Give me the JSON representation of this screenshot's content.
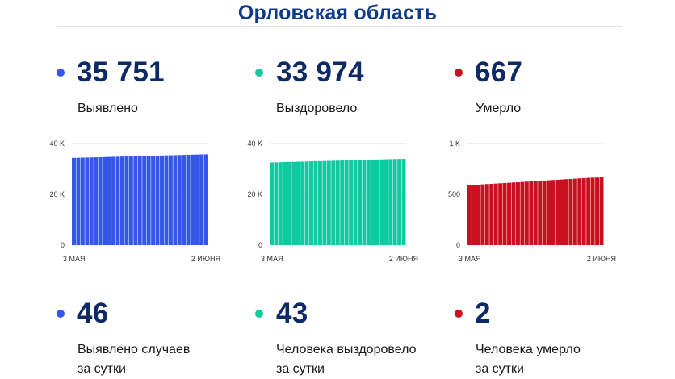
{
  "title": "Орловская область",
  "colors": {
    "blue": "#3557e8",
    "teal": "#0fc9a0",
    "red": "#c8101e",
    "title": "#0d3a8a"
  },
  "totals": [
    {
      "value": "35 751",
      "label": "Выявлено",
      "color": "#3557e8"
    },
    {
      "value": "33 974",
      "label": "Выздоровело",
      "color": "#0fc9a0"
    },
    {
      "value": "667",
      "label": "Умерло",
      "color": "#c8101e"
    }
  ],
  "daily": [
    {
      "value": "46",
      "label_line1": "Выявлено случаев",
      "label_line2": "за сутки",
      "color": "#3557e8"
    },
    {
      "value": "43",
      "label_line1": "Человека выздоровело",
      "label_line2": "за сутки",
      "color": "#0fc9a0"
    },
    {
      "value": "2",
      "label_line1": "Человека умерло",
      "label_line2": "за сутки",
      "color": "#c8101e"
    }
  ],
  "chart_data": [
    {
      "type": "bar",
      "x_start_label": "3 МАЯ",
      "x_end_label": "2 ИЮНЯ",
      "y_tick_labels": [
        "0",
        "20 K",
        "40 K"
      ],
      "y_ticks": [
        0,
        20000,
        40000
      ],
      "ylim": [
        0,
        40000
      ],
      "color": "#3557e8",
      "values": [
        34350,
        34397,
        34444,
        34490,
        34537,
        34584,
        34631,
        34678,
        34724,
        34771,
        34818,
        34865,
        34912,
        34958,
        35005,
        35052,
        35099,
        35146,
        35192,
        35239,
        35286,
        35333,
        35380,
        35426,
        35473,
        35520,
        35567,
        35614,
        35660,
        35705,
        35751
      ]
    },
    {
      "type": "bar",
      "x_start_label": "3 МАЯ",
      "x_end_label": "2 ИЮНЯ",
      "y_tick_labels": [
        "0",
        "20 K",
        "40 K"
      ],
      "y_ticks": [
        0,
        20000,
        40000
      ],
      "ylim": [
        0,
        40000
      ],
      "color": "#0fc9a0",
      "values": [
        32550,
        32597,
        32645,
        32692,
        32740,
        32787,
        32835,
        32882,
        32930,
        32977,
        33025,
        33072,
        33120,
        33167,
        33215,
        33262,
        33310,
        33357,
        33405,
        33452,
        33500,
        33547,
        33595,
        33642,
        33690,
        33737,
        33785,
        33832,
        33880,
        33931,
        33974
      ]
    },
    {
      "type": "bar",
      "x_start_label": "3 МАЯ",
      "x_end_label": "2 ИЮНЯ",
      "y_tick_labels": [
        "0",
        "500",
        "1 K"
      ],
      "y_ticks": [
        0,
        500,
        1000
      ],
      "ylim": [
        0,
        1000
      ],
      "color": "#c8101e",
      "values": [
        590,
        593,
        595,
        598,
        601,
        603,
        606,
        609,
        611,
        614,
        617,
        619,
        622,
        625,
        627,
        630,
        633,
        635,
        638,
        641,
        643,
        646,
        649,
        651,
        654,
        657,
        659,
        662,
        664,
        665,
        667
      ]
    }
  ]
}
